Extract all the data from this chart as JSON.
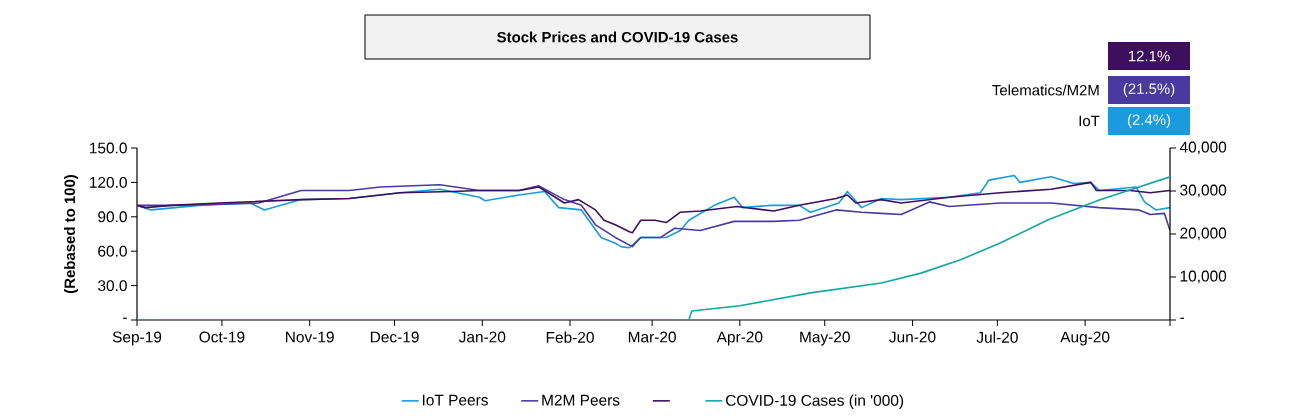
{
  "chart_data": {
    "type": "line",
    "title": "Stock Prices and COVID-19 Cases",
    "ylabel": "(Rebased to 100)",
    "annotations": [
      "12.1%",
      "Telematics/M2M",
      "(21.5%)",
      "IoT",
      "(2.4%)"
    ],
    "legend": "bottom",
    "marker": "none",
    "line_style": "solid",
    "xlim": [
      "2019-09-01",
      "2020-08-31"
    ],
    "xticks": [
      {
        "value": "2019-09-01",
        "label": "Sep-19"
      },
      {
        "value": "2019-10-01",
        "label": "Oct-19"
      },
      {
        "value": "2019-11-01",
        "label": "Nov-19"
      },
      {
        "value": "2019-12-01",
        "label": "Dec-19"
      },
      {
        "value": "2020-01-01",
        "label": "Jan-20"
      },
      {
        "value": "2020-02-01",
        "label": "Feb-20"
      },
      {
        "value": "2020-03-01",
        "label": "Mar-20"
      },
      {
        "value": "2020-04-01",
        "label": "Apr-20"
      },
      {
        "value": "2020-05-01",
        "label": "May-20"
      },
      {
        "value": "2020-06-01",
        "label": "Jun-20"
      },
      {
        "value": "2020-07-01",
        "label": "Jul-20"
      },
      {
        "value": "2020-08-01",
        "label": "Aug-20"
      },
      {
        "value": "2020-08-31",
        "label": null
      }
    ],
    "ylim": [
      0,
      150
    ],
    "yticks": [
      {
        "value": 0,
        "label": "-"
      },
      {
        "value": 30,
        "label": "30.0"
      },
      {
        "value": 60,
        "label": "60.0"
      },
      {
        "value": 90,
        "label": "90.0"
      },
      {
        "value": 120,
        "label": "120.0"
      },
      {
        "value": 150,
        "label": "150.0"
      }
    ],
    "y2lim": [
      0,
      40000
    ],
    "y2ticks": [
      {
        "value": 0,
        "label": "-"
      },
      {
        "value": 10000,
        "label": "10,000"
      },
      {
        "value": 20000,
        "label": "20,000"
      },
      {
        "value": 30000,
        "label": "30,000"
      },
      {
        "value": 40000,
        "label": "40,000"
      }
    ],
    "series": [
      {
        "name": "IoT Peers",
        "color": "#1a9be0",
        "x": [
          "2019-09-01",
          "2019-09-06",
          "2019-09-23",
          "2019-10-11",
          "2019-10-16",
          "2019-10-29",
          "2019-11-15",
          "2019-12-03",
          "2019-12-17",
          "2019-12-31",
          "2020-01-02",
          "2020-01-14",
          "2020-01-23",
          "2020-01-28",
          "2020-02-05",
          "2020-02-12",
          "2020-02-17",
          "2020-02-19",
          "2020-02-22",
          "2020-02-26",
          "2020-03-06",
          "2020-03-11",
          "2020-03-14",
          "2020-03-23",
          "2020-03-30",
          "2020-04-02",
          "2020-04-12",
          "2020-04-22",
          "2020-04-26",
          "2020-05-06",
          "2020-05-09",
          "2020-05-14",
          "2020-05-21",
          "2020-05-28",
          "2020-06-14",
          "2020-06-25",
          "2020-06-28",
          "2020-07-07",
          "2020-07-09",
          "2020-07-20",
          "2020-07-28",
          "2020-08-03",
          "2020-08-06",
          "2020-08-19",
          "2020-08-22",
          "2020-08-26",
          "2020-08-31"
        ],
        "values": [
          100,
          96,
          100,
          102,
          96,
          105,
          106,
          111,
          114,
          107,
          104,
          109,
          112,
          98,
          96,
          72,
          67,
          64,
          63,
          72,
          72,
          78,
          87,
          100,
          107,
          98,
          100,
          100,
          94,
          102,
          112,
          98,
          106,
          105,
          107,
          111,
          122,
          126,
          120,
          125,
          119,
          120,
          113,
          116,
          103,
          96,
          98
        ]
      },
      {
        "name": "M2M Peers",
        "color": "#4a3aa0",
        "x": [
          "2019-09-01",
          "2019-09-13",
          "2019-09-30",
          "2019-10-14",
          "2019-10-29",
          "2019-11-15",
          "2019-11-26",
          "2019-12-17",
          "2019-12-31",
          "2020-01-14",
          "2020-01-21",
          "2020-01-30",
          "2020-02-05",
          "2020-02-10",
          "2020-02-17",
          "2020-02-23",
          "2020-02-26",
          "2020-03-04",
          "2020-03-09",
          "2020-03-18",
          "2020-03-30",
          "2020-04-13",
          "2020-04-22",
          "2020-05-05",
          "2020-05-14",
          "2020-05-21",
          "2020-05-28",
          "2020-06-07",
          "2020-06-14",
          "2020-07-02",
          "2020-07-20",
          "2020-08-06",
          "2020-08-20",
          "2020-08-24",
          "2020-08-29",
          "2020-08-31"
        ],
        "values": [
          100,
          100,
          101,
          102,
          113,
          113,
          116,
          118,
          113,
          113,
          117,
          105,
          100,
          83,
          72,
          64,
          72,
          72,
          80,
          78,
          86,
          86,
          87,
          96,
          94,
          93,
          92,
          103,
          99,
          102,
          102,
          98,
          96,
          92,
          93,
          78
        ]
      },
      {
        "name": null,
        "color": "#3e0f5c",
        "x": [
          "2019-09-01",
          "2019-09-04",
          "2019-09-13",
          "2019-09-30",
          "2019-10-29",
          "2019-11-15",
          "2019-12-03",
          "2019-12-21",
          "2019-12-31",
          "2020-01-14",
          "2020-01-21",
          "2020-01-30",
          "2020-02-04",
          "2020-02-10",
          "2020-02-13",
          "2020-02-17",
          "2020-02-22",
          "2020-02-23",
          "2020-02-26",
          "2020-03-02",
          "2020-03-06",
          "2020-03-11",
          "2020-03-18",
          "2020-03-31",
          "2020-04-13",
          "2020-04-22",
          "2020-05-05",
          "2020-05-09",
          "2020-05-12",
          "2020-05-21",
          "2020-05-28",
          "2020-06-14",
          "2020-07-02",
          "2020-07-20",
          "2020-08-03",
          "2020-08-05",
          "2020-08-17",
          "2020-08-24",
          "2020-08-31"
        ],
        "values": [
          100,
          98,
          100,
          102,
          105,
          106,
          111,
          112,
          113,
          113,
          116,
          102,
          105,
          96,
          87,
          83,
          77,
          76,
          87,
          87,
          85,
          94,
          95,
          99,
          95,
          100,
          106,
          109,
          102,
          105,
          102,
          107,
          111,
          114,
          120,
          113,
          113,
          111,
          113
        ]
      },
      {
        "name": "COVID-19 Cases (in '000)",
        "color": "#14a6a0",
        "axis": "y2",
        "x": [
          "2019-09-01",
          "2020-03-14",
          "2020-03-15",
          "2020-04-01",
          "2020-04-26",
          "2020-05-21",
          "2020-06-04",
          "2020-06-18",
          "2020-07-02",
          "2020-07-19",
          "2020-08-06",
          "2020-08-31"
        ],
        "values": [
          0,
          0,
          2100,
          3300,
          6300,
          8600,
          10900,
          14000,
          17900,
          23300,
          27900,
          33300
        ]
      }
    ]
  }
}
